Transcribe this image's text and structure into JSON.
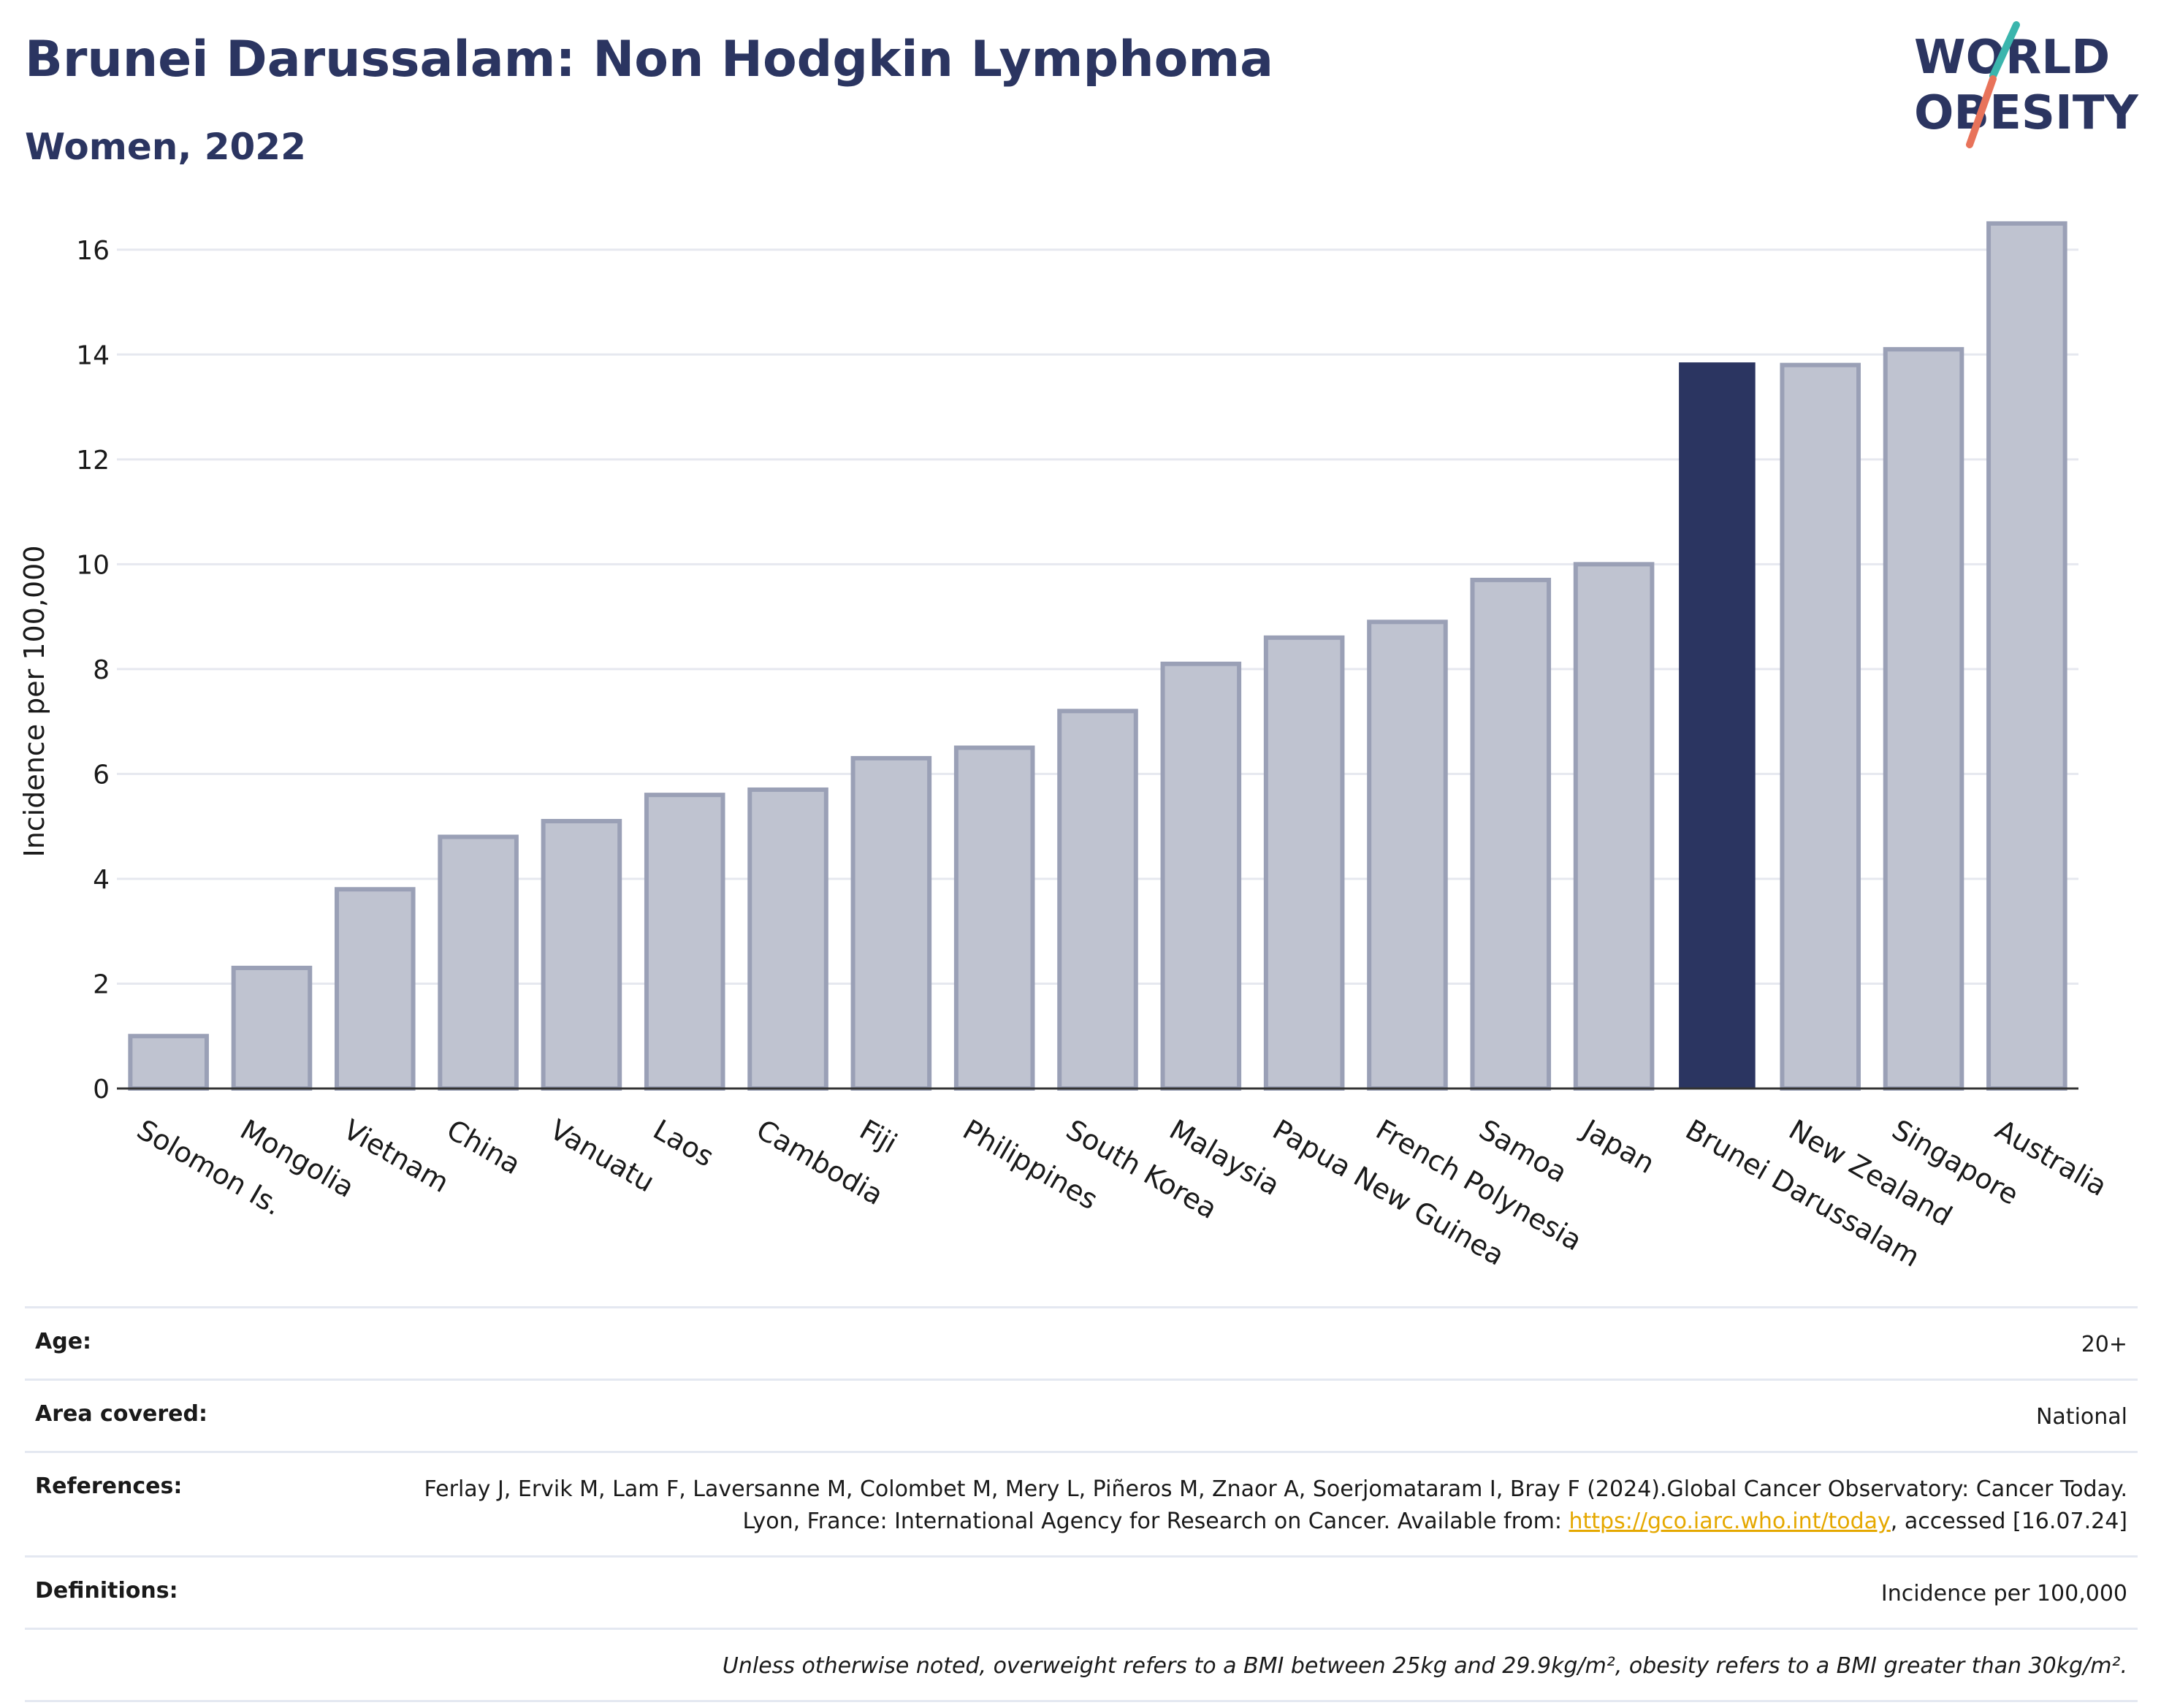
{
  "header": {
    "title": "Brunei Darussalam: Non Hodgkin Lymphoma",
    "subtitle": "Women, 2022",
    "logo_line1": "WORLD",
    "logo_line2": "OBESITY"
  },
  "colors": {
    "brand": "#2b3561",
    "bar": "#bfc3d0",
    "bar_edge": "#9aa0b6",
    "highlight": "#2b3561",
    "logo_teal": "#3bb5ad",
    "logo_coral": "#e8735a",
    "link": "#e5a800"
  },
  "chart_data": {
    "type": "bar",
    "ylabel": "Incidence per 100,000",
    "ylim": [
      0,
      17
    ],
    "yticks": [
      0,
      2,
      4,
      6,
      8,
      10,
      12,
      14,
      16
    ],
    "grid": true,
    "highlight": "Brunei Darussalam",
    "categories": [
      "Solomon Is.",
      "Mongolia",
      "Vietnam",
      "China",
      "Vanuatu",
      "Laos",
      "Cambodia",
      "Fiji",
      "Philippines",
      "South Korea",
      "Malaysia",
      "Papua New Guinea",
      "French Polynesia",
      "Samoa",
      "Japan",
      "Brunei Darussalam",
      "New Zealand",
      "Singapore",
      "Australia"
    ],
    "values": [
      1.0,
      2.3,
      3.8,
      4.8,
      5.1,
      5.6,
      5.7,
      6.3,
      6.5,
      7.2,
      8.1,
      8.6,
      8.9,
      9.7,
      10.0,
      13.85,
      13.8,
      14.1,
      16.5
    ]
  },
  "meta": {
    "age_label": "Age:",
    "age_value": "20+",
    "area_label": "Area covered:",
    "area_value": "National",
    "references_label": "References:",
    "references_text": "Ferlay J, Ervik M, Lam F, Laversanne M, Colombet M, Mery L, Piñeros M, Znaor A, Soerjomataram I, Bray F (2024).Global Cancer Observatory: Cancer Today. Lyon, France: International Agency for Research on Cancer. Available from:",
    "references_link": "https://gco.iarc.who.int/today",
    "references_suffix": ", accessed [16.07.24]",
    "definitions_label": "Definitions:",
    "definitions_value": "Incidence per 100,000",
    "note": "Unless otherwise noted, overweight refers to a BMI between 25kg and 29.9kg/m², obesity refers to a BMI greater than 30kg/m²."
  }
}
